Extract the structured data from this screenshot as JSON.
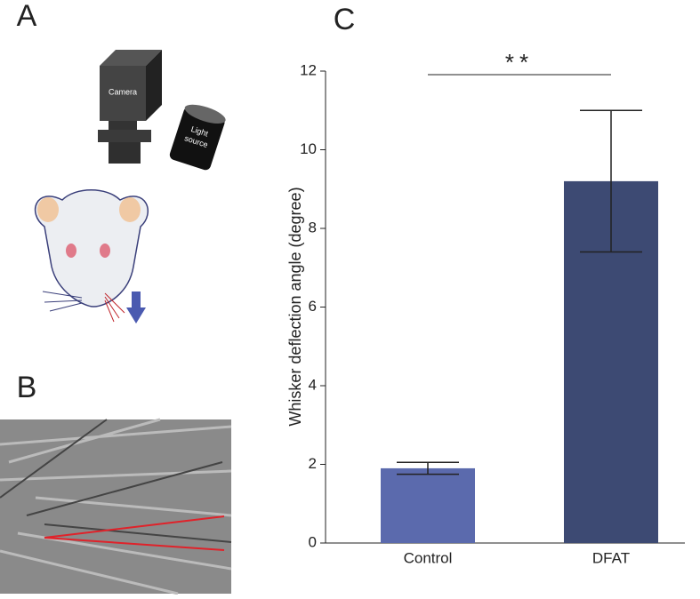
{
  "panels": [
    "A",
    "B",
    "C"
  ],
  "diagram": {
    "camera": "Camera",
    "light": [
      "Light",
      "source"
    ]
  },
  "chart_data": {
    "type": "bar",
    "categories": [
      "Control",
      "DFAT"
    ],
    "values": [
      1.9,
      9.2
    ],
    "errors": [
      0.15,
      1.8
    ],
    "colors": [
      "#5b6aad",
      "#3d4a73"
    ],
    "y_label": "Whisker deflection angle (degree)",
    "significance": "**",
    "ylim": [
      0,
      12
    ],
    "yticks": [
      0,
      2,
      4,
      6,
      8,
      10,
      12
    ]
  }
}
